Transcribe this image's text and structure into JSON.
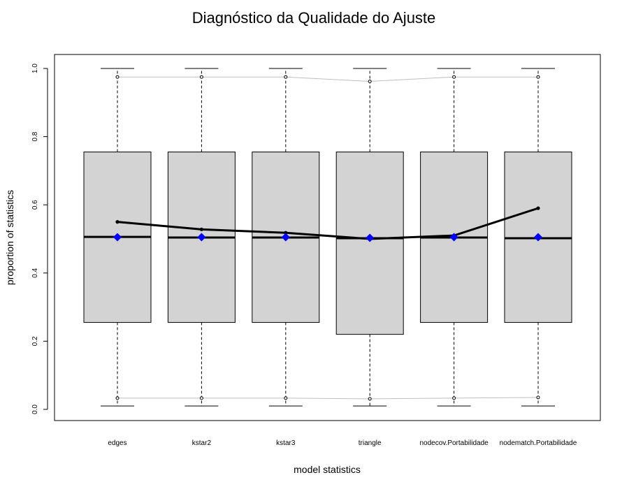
{
  "chart_data": {
    "type": "boxplot",
    "title": "Diagnóstico da Qualidade do Ajuste",
    "xlabel": "model statistics",
    "ylabel": "proportion of statistics",
    "ylim": [
      0.0,
      1.0
    ],
    "yticks": [
      "0.0",
      "0.2",
      "0.4",
      "0.6",
      "0.8",
      "1.0"
    ],
    "categories": [
      "edges",
      "kstar2",
      "kstar3",
      "triangle",
      "nodecov.Portabilidade",
      "nodematch.Portabilidade"
    ],
    "boxes": [
      {
        "whisker_low": 0.01,
        "q1": 0.255,
        "median": 0.506,
        "q3": 0.755,
        "whisker_high": 1.0
      },
      {
        "whisker_low": 0.01,
        "q1": 0.255,
        "median": 0.504,
        "q3": 0.755,
        "whisker_high": 1.0
      },
      {
        "whisker_low": 0.01,
        "q1": 0.255,
        "median": 0.504,
        "q3": 0.755,
        "whisker_high": 1.0
      },
      {
        "whisker_low": 0.01,
        "q1": 0.22,
        "median": 0.502,
        "q3": 0.755,
        "whisker_high": 1.0
      },
      {
        "whisker_low": 0.01,
        "q1": 0.255,
        "median": 0.504,
        "q3": 0.755,
        "whisker_high": 1.0
      },
      {
        "whisker_low": 0.01,
        "q1": 0.255,
        "median": 0.502,
        "q3": 0.755,
        "whisker_high": 1.0
      }
    ],
    "series": [
      {
        "values": [
          0.55,
          0.528,
          0.518,
          0.5,
          0.51,
          0.59
        ],
        "color": "#000000"
      },
      {
        "values": [
          0.975,
          0.975,
          0.975,
          0.962,
          0.975,
          0.975
        ],
        "color": "#bebebe"
      },
      {
        "values": [
          0.033,
          0.033,
          0.033,
          0.031,
          0.033,
          0.035
        ],
        "color": "#bebebe"
      },
      {
        "values": [
          0.505,
          0.505,
          0.505,
          0.503,
          0.505,
          0.505
        ],
        "color": "#0000ff"
      }
    ],
    "box_fill": "#d3d3d3",
    "grid": false
  }
}
